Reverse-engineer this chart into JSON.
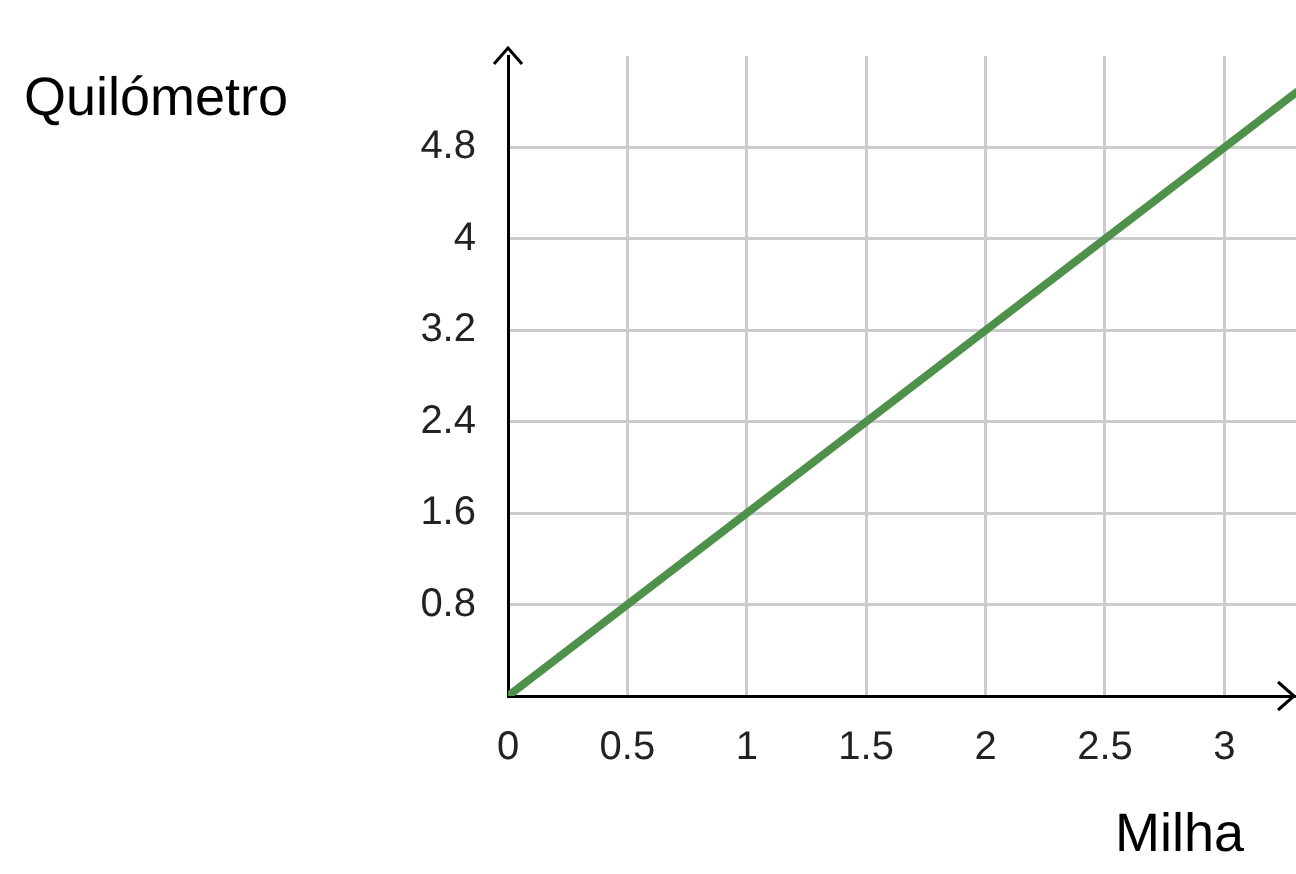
{
  "chart_data": {
    "type": "line",
    "xlabel": "Milha",
    "ylabel": "Quilómetro",
    "x": [
      0,
      3.3
    ],
    "series": [
      {
        "color": "#4f914a",
        "values": [
          0,
          5.28
        ]
      }
    ],
    "xlim": [
      0,
      3.3
    ],
    "xticks": [
      0,
      0.5,
      1,
      1.5,
      2,
      2.5,
      3
    ],
    "ylim": [
      0,
      5.6
    ],
    "yticks": [
      0.8,
      1.6,
      2.4,
      3.2,
      4,
      4.8
    ],
    "grid": true,
    "legend": false,
    "marker": "none",
    "line_style": "solid"
  }
}
